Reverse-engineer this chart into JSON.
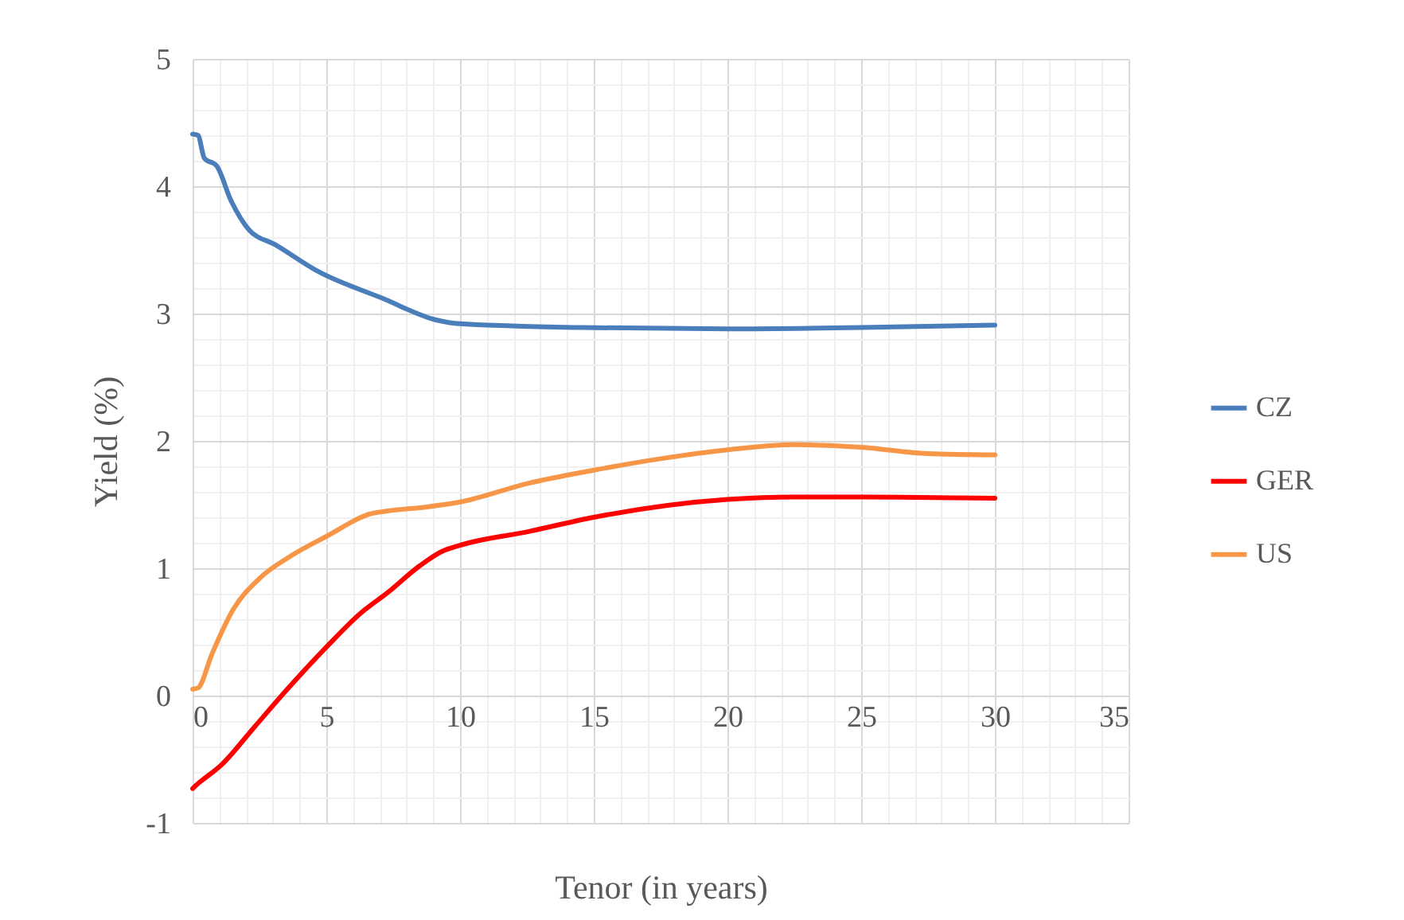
{
  "chart_data": {
    "type": "line",
    "xlabel": "Tenor (in years)",
    "ylabel": "Yield (%)",
    "xlim": [
      0,
      35
    ],
    "ylim": [
      -1,
      5
    ],
    "xticks": [
      0,
      {
        "value": 1,
        "label": null
      },
      {
        "value": 2,
        "label": null
      },
      {
        "value": 3,
        "label": null
      },
      {
        "value": 4,
        "label": null
      },
      5,
      {
        "value": 6,
        "label": null
      },
      {
        "value": 7,
        "label": null
      },
      {
        "value": 8,
        "label": null
      },
      {
        "value": 9,
        "label": null
      },
      10,
      {
        "value": 11,
        "label": null
      },
      {
        "value": 12,
        "label": null
      },
      {
        "value": 13,
        "label": null
      },
      {
        "value": 14,
        "label": null
      },
      15,
      {
        "value": 16,
        "label": null
      },
      {
        "value": 17,
        "label": null
      },
      {
        "value": 18,
        "label": null
      },
      {
        "value": 19,
        "label": null
      },
      20,
      {
        "value": 21,
        "label": null
      },
      {
        "value": 22,
        "label": null
      },
      {
        "value": 23,
        "label": null
      },
      {
        "value": 24,
        "label": null
      },
      25,
      {
        "value": 26,
        "label": null
      },
      {
        "value": 27,
        "label": null
      },
      {
        "value": 28,
        "label": null
      },
      {
        "value": 29,
        "label": null
      },
      30,
      {
        "value": 31,
        "label": null
      },
      {
        "value": 32,
        "label": null
      },
      {
        "value": 33,
        "label": null
      },
      {
        "value": 34,
        "label": null
      },
      35
    ],
    "yticks": [
      -1,
      {
        "value": -0.8,
        "label": null
      },
      {
        "value": -0.6,
        "label": null
      },
      {
        "value": -0.4,
        "label": null
      },
      {
        "value": -0.2,
        "label": null
      },
      0,
      {
        "value": 0.2,
        "label": null
      },
      {
        "value": 0.4,
        "label": null
      },
      {
        "value": 0.6,
        "label": null
      },
      {
        "value": 0.8,
        "label": null
      },
      1,
      {
        "value": 1.2,
        "label": null
      },
      {
        "value": 1.4,
        "label": null
      },
      {
        "value": 1.6,
        "label": null
      },
      {
        "value": 1.8,
        "label": null
      },
      2,
      {
        "value": 2.2,
        "label": null
      },
      {
        "value": 2.4,
        "label": null
      },
      {
        "value": 2.6,
        "label": null
      },
      {
        "value": 2.8,
        "label": null
      },
      3,
      {
        "value": 3.2,
        "label": null
      },
      {
        "value": 3.4,
        "label": null
      },
      {
        "value": 3.6,
        "label": null
      },
      {
        "value": 3.8,
        "label": null
      },
      4,
      {
        "value": 4.2,
        "label": null
      },
      {
        "value": 4.4,
        "label": null
      },
      {
        "value": 4.6,
        "label": null
      },
      {
        "value": 4.8,
        "label": null
      },
      5
    ],
    "grid": true,
    "legend": "right",
    "line_style": "solid",
    "marker": "none",
    "series": [
      {
        "name": "CZ",
        "color": "#4a7ebb",
        "x": [
          0,
          0.2,
          0.44,
          0.9,
          1.43,
          2.1,
          3.1,
          4.7,
          7.1,
          9.1,
          10,
          14.6,
          20,
          25,
          30
        ],
        "values": [
          4.41,
          4.4,
          4.22,
          4.16,
          3.89,
          3.66,
          3.54,
          3.33,
          3.12,
          2.95,
          2.92,
          2.89,
          2.88,
          2.89,
          2.91
        ]
      },
      {
        "name": "GER",
        "color": "#ff0000",
        "x": [
          0,
          0.1,
          1.1,
          2.3,
          3.5,
          5,
          6.3,
          7.3,
          8.5,
          9.3,
          10,
          12.6,
          15,
          20,
          22.5,
          25,
          30
        ],
        "values": [
          -0.73,
          -0.71,
          -0.54,
          -0.25,
          0.04,
          0.38,
          0.65,
          0.81,
          1.02,
          1.13,
          1.18,
          1.29,
          1.4,
          1.54,
          1.56,
          1.56,
          1.55
        ]
      },
      {
        "name": "US",
        "color": "#f79646",
        "x": [
          0,
          0.2,
          0.73,
          1.5,
          2.5,
          3.7,
          5,
          6.7,
          7.3,
          8.7,
          10,
          12.6,
          15,
          17.5,
          20,
          22.5,
          25,
          27.5,
          30
        ],
        "values": [
          0.05,
          0.06,
          0.33,
          0.67,
          0.92,
          1.1,
          1.25,
          1.43,
          1.45,
          1.48,
          1.52,
          1.67,
          1.77,
          1.86,
          1.93,
          1.97,
          1.95,
          1.9,
          1.89
        ]
      }
    ]
  }
}
